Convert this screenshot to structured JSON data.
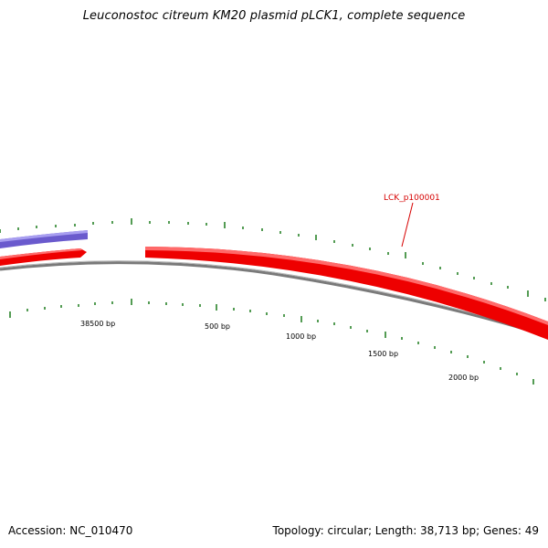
{
  "header": {
    "title": "Leuconostoc citreum KM20 plasmid pLCK1, complete sequence"
  },
  "footer": {
    "accession": "Accession: NC_010470",
    "summary": "Topology: circular; Length: 38,713 bp; Genes: 49"
  },
  "map": {
    "tick_labels": [
      "38500 bp",
      "500 bp",
      "1000 bp",
      "1500 bp",
      "2000 bp"
    ],
    "gene_label": "LCK_p100001",
    "colors": {
      "forward_gene": "#ee0000",
      "forward_gene_highlight": "#ff6a6a",
      "reverse_gene": "#6a5acd",
      "reverse_gene_highlight": "#a89ef0",
      "backbone": "#7a7a7a",
      "ticks": "#1a7a1a",
      "gene_label": "#d60000"
    }
  }
}
